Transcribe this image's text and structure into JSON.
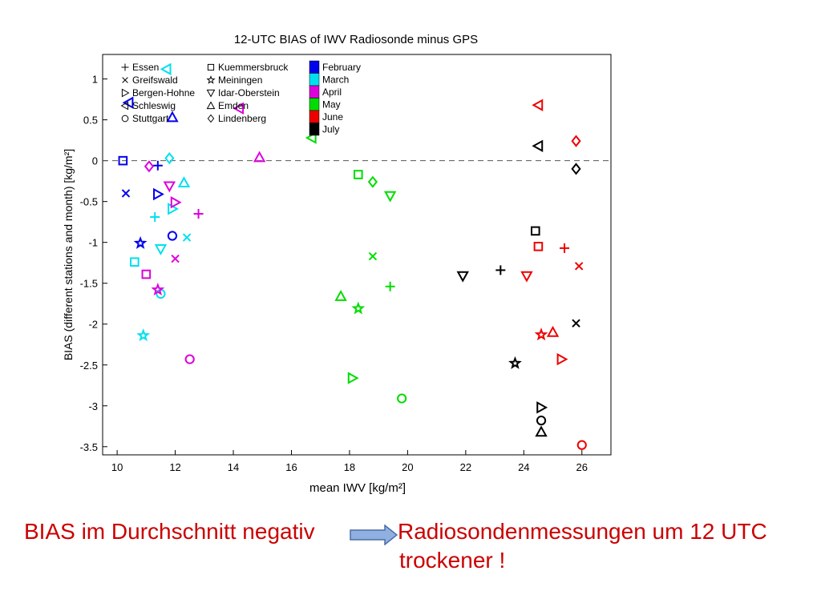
{
  "chart_data": {
    "type": "scatter",
    "title": "12-UTC BIAS of IWV Radiosonde minus GPS",
    "xlabel": "mean IWV [kg/m²]",
    "ylabel": "BIAS (different stations and month) [kg/m²]",
    "xlim": [
      9.5,
      27
    ],
    "ylim": [
      -3.6,
      1.3
    ],
    "xticks": [
      "10",
      "12",
      "14",
      "16",
      "18",
      "20",
      "22",
      "24",
      "26"
    ],
    "yticks": [
      "1",
      "0.5",
      "0",
      "-0.5",
      "-1",
      "-1.5",
      "-2",
      "-2.5",
      "-3",
      "-3.5"
    ],
    "grid": false,
    "reference_line": 0,
    "station_legend": [
      {
        "name": "Essen",
        "marker": "plus"
      },
      {
        "name": "Greifswald",
        "marker": "x"
      },
      {
        "name": "Bergen-Hohne",
        "marker": "tri-right"
      },
      {
        "name": "Schleswig",
        "marker": "tri-left"
      },
      {
        "name": "Stuttgart",
        "marker": "circle"
      },
      {
        "name": "Kuemmersbruck",
        "marker": "square"
      },
      {
        "name": "Meiningen",
        "marker": "star"
      },
      {
        "name": "Idar-Oberstein",
        "marker": "tri-down"
      },
      {
        "name": "Emden",
        "marker": "tri-up"
      },
      {
        "name": "Lindenberg",
        "marker": "diamond"
      }
    ],
    "month_legend": [
      {
        "name": "February",
        "color": "#0000ee"
      },
      {
        "name": "March",
        "color": "#00e0ee"
      },
      {
        "name": "April",
        "color": "#dd00dd"
      },
      {
        "name": "May",
        "color": "#00dd00"
      },
      {
        "name": "June",
        "color": "#ee0000"
      },
      {
        "name": "July",
        "color": "#000000"
      }
    ],
    "series": [
      {
        "month": "February",
        "points": [
          {
            "station": "Essen",
            "x": 11.4,
            "y": -0.06
          },
          {
            "station": "Greifswald",
            "x": 10.3,
            "y": -0.4
          },
          {
            "station": "Bergen-Hohne",
            "x": 11.4,
            "y": -0.41
          },
          {
            "station": "Schleswig",
            "x": 10.4,
            "y": 0.71
          },
          {
            "station": "Stuttgart",
            "x": 11.9,
            "y": -0.92
          },
          {
            "station": "Kuemmersbruck",
            "x": 10.2,
            "y": 0.0
          },
          {
            "station": "Meiningen",
            "x": 10.8,
            "y": -1.01
          },
          {
            "station": "Emden",
            "x": 11.9,
            "y": 0.53
          }
        ]
      },
      {
        "month": "March",
        "points": [
          {
            "station": "Essen",
            "x": 11.3,
            "y": -0.69
          },
          {
            "station": "Greifswald",
            "x": 12.4,
            "y": -0.94
          },
          {
            "station": "Bergen-Hohne",
            "x": 11.9,
            "y": -0.59
          },
          {
            "station": "Schleswig",
            "x": 11.7,
            "y": 1.12
          },
          {
            "station": "Stuttgart",
            "x": 11.5,
            "y": -1.63
          },
          {
            "station": "Kuemmersbruck",
            "x": 10.6,
            "y": -1.24
          },
          {
            "station": "Meiningen",
            "x": 10.9,
            "y": -2.14
          },
          {
            "station": "Idar-Oberstein",
            "x": 11.5,
            "y": -1.08
          },
          {
            "station": "Emden",
            "x": 12.3,
            "y": -0.27
          },
          {
            "station": "Lindenberg",
            "x": 11.8,
            "y": 0.03
          }
        ]
      },
      {
        "month": "April",
        "points": [
          {
            "station": "Essen",
            "x": 12.8,
            "y": -0.65
          },
          {
            "station": "Greifswald",
            "x": 12.0,
            "y": -1.2
          },
          {
            "station": "Bergen-Hohne",
            "x": 12.0,
            "y": -0.51
          },
          {
            "station": "Schleswig",
            "x": 14.2,
            "y": 0.64
          },
          {
            "station": "Stuttgart",
            "x": 12.5,
            "y": -2.43
          },
          {
            "station": "Kuemmersbruck",
            "x": 11.0,
            "y": -1.39
          },
          {
            "station": "Meiningen",
            "x": 11.4,
            "y": -1.58
          },
          {
            "station": "Idar-Oberstein",
            "x": 11.8,
            "y": -0.31
          },
          {
            "station": "Emden",
            "x": 14.9,
            "y": 0.04
          },
          {
            "station": "Lindenberg",
            "x": 11.1,
            "y": -0.07
          }
        ]
      },
      {
        "month": "May",
        "points": [
          {
            "station": "Essen",
            "x": 19.4,
            "y": -1.54
          },
          {
            "station": "Greifswald",
            "x": 18.8,
            "y": -1.17
          },
          {
            "station": "Bergen-Hohne",
            "x": 18.1,
            "y": -2.66
          },
          {
            "station": "Schleswig",
            "x": 16.7,
            "y": 0.28
          },
          {
            "station": "Stuttgart",
            "x": 19.8,
            "y": -2.91
          },
          {
            "station": "Kuemmersbruck",
            "x": 18.3,
            "y": -0.17
          },
          {
            "station": "Meiningen",
            "x": 18.3,
            "y": -1.81
          },
          {
            "station": "Idar-Oberstein",
            "x": 19.4,
            "y": -0.43
          },
          {
            "station": "Emden",
            "x": 17.7,
            "y": -1.66
          },
          {
            "station": "Lindenberg",
            "x": 18.8,
            "y": -0.26
          }
        ]
      },
      {
        "month": "June",
        "points": [
          {
            "station": "Essen",
            "x": 25.4,
            "y": -1.07
          },
          {
            "station": "Greifswald",
            "x": 25.9,
            "y": -1.29
          },
          {
            "station": "Bergen-Hohne",
            "x": 25.3,
            "y": -2.43
          },
          {
            "station": "Schleswig",
            "x": 24.5,
            "y": 0.68
          },
          {
            "station": "Stuttgart",
            "x": 26.0,
            "y": -3.48
          },
          {
            "station": "Kuemmersbruck",
            "x": 24.5,
            "y": -1.05
          },
          {
            "station": "Meiningen",
            "x": 24.6,
            "y": -2.13
          },
          {
            "station": "Idar-Oberstein",
            "x": 24.1,
            "y": -1.41
          },
          {
            "station": "Emden",
            "x": 25.0,
            "y": -2.1
          },
          {
            "station": "Lindenberg",
            "x": 25.8,
            "y": 0.24
          }
        ]
      },
      {
        "month": "July",
        "points": [
          {
            "station": "Essen",
            "x": 23.2,
            "y": -1.34
          },
          {
            "station": "Greifswald",
            "x": 25.8,
            "y": -1.99
          },
          {
            "station": "Bergen-Hohne",
            "x": 24.6,
            "y": -3.02
          },
          {
            "station": "Schleswig",
            "x": 24.5,
            "y": 0.18
          },
          {
            "station": "Stuttgart",
            "x": 24.6,
            "y": -3.18
          },
          {
            "station": "Kuemmersbruck",
            "x": 24.4,
            "y": -0.86
          },
          {
            "station": "Meiningen",
            "x": 23.7,
            "y": -2.48
          },
          {
            "station": "Idar-Oberstein",
            "x": 21.9,
            "y": -1.41
          },
          {
            "station": "Emden",
            "x": 24.6,
            "y": -3.32
          },
          {
            "station": "Lindenberg",
            "x": 25.8,
            "y": -0.1
          }
        ]
      }
    ]
  },
  "caption": {
    "left": "BIAS im Durchschnitt negativ",
    "arrow_icon": "right-arrow-icon",
    "right_line1": "Radiosondenmessungen um 12 UTC",
    "right_line2": "trockener !"
  },
  "colors": {
    "caption_text": "#cc0000",
    "arrow_fill": "#8fb0e0",
    "arrow_stroke": "#4a6fa5"
  }
}
